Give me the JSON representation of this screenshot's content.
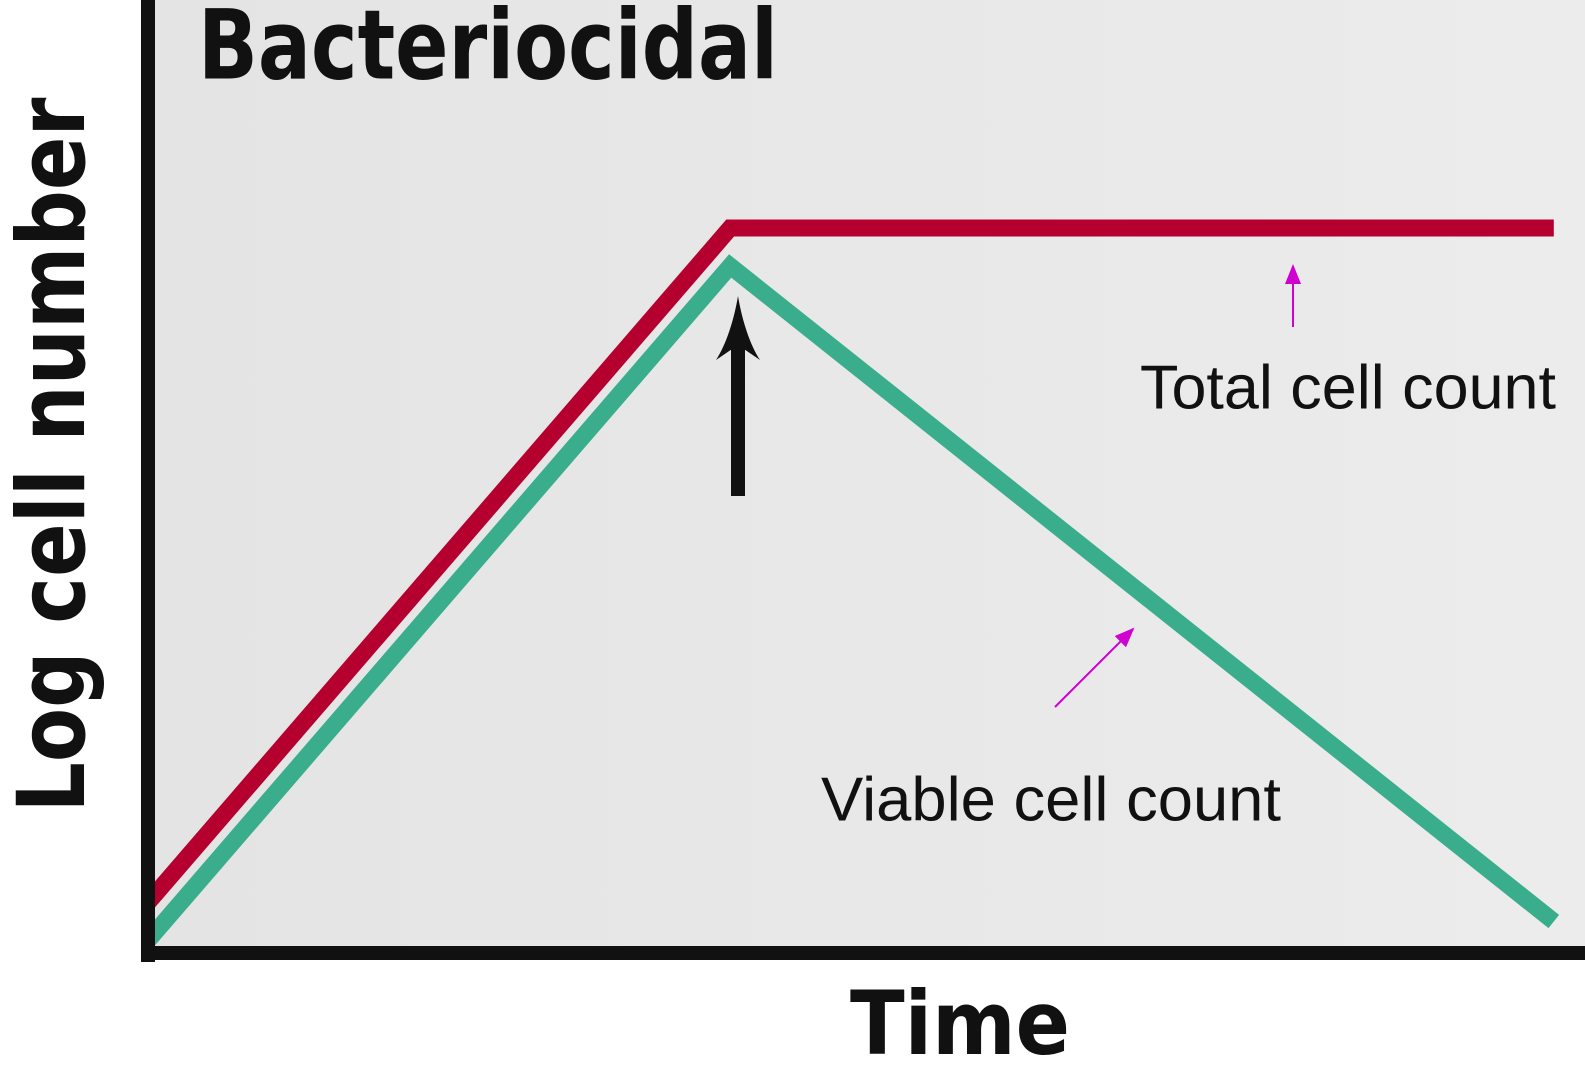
{
  "chart_data": {
    "type": "line",
    "title": "Bacteriocidal",
    "x_label": "Time",
    "y_label": "Log cell number",
    "x": [
      0,
      4.1,
      9.9
    ],
    "xlim": [
      0,
      10
    ],
    "ylim": [
      0,
      10
    ],
    "series": [
      {
        "name": "Total cell count",
        "color": "#b5002f",
        "values": [
          0.5,
          7.6,
          7.6
        ]
      },
      {
        "name": "Viable cell count",
        "color": "#3aae8c",
        "values": [
          0.1,
          7.2,
          0.3
        ]
      }
    ]
  }
}
